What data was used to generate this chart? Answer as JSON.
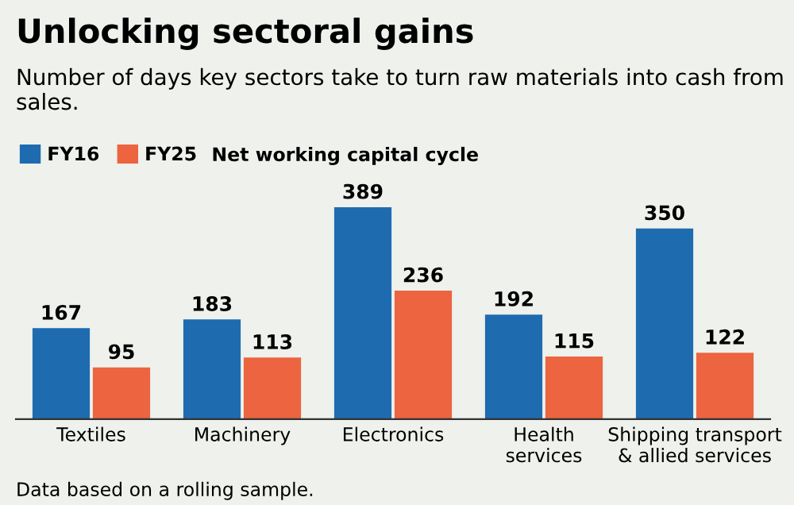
{
  "chart_data": {
    "type": "bar",
    "title": "Unlocking sectoral gains",
    "subtitle": "Number of days key sectors take to turn raw materials into cash from sales.",
    "categories": [
      "Textiles",
      "Machinery",
      "Electronics",
      "Health\nservices",
      "Shipping transport\n& allied services"
    ],
    "series": [
      {
        "name": "FY16",
        "color": "#1f6bb0",
        "values": [
          167,
          183,
          389,
          192,
          350
        ]
      },
      {
        "name": "FY25",
        "color": "#ec6440",
        "values": [
          95,
          113,
          236,
          115,
          122
        ]
      }
    ],
    "data_labels": true,
    "legend": "top left",
    "annotations": [
      "Net working capital cycle",
      "Data based on a rolling sample."
    ]
  }
}
